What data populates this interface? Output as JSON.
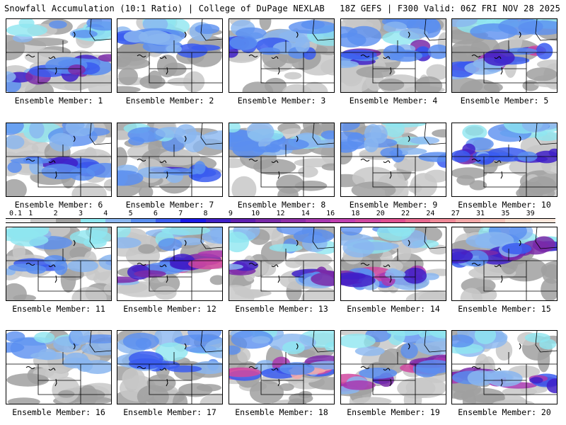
{
  "header": {
    "title_left": "Snowfall Accumulation (10:1 Ratio) | College of DuPage NEXLAB",
    "title_right": "18Z GEFS | F300 Valid: 06Z FRI NOV 28 2025"
  },
  "colorbar": {
    "labels": [
      "0.1",
      "1",
      "2",
      "3",
      "4",
      "5",
      "6",
      "7",
      "8",
      "9",
      "10",
      "12",
      "14",
      "16",
      "18",
      "20",
      "22",
      "24",
      "27",
      "31",
      "35",
      "39"
    ],
    "colors": [
      "#f4f4f4",
      "#c8c8c8",
      "#a0a0a0",
      "#8ee6f0",
      "#8ab6f0",
      "#5a8ef0",
      "#3a5cf0",
      "#1a1ae8",
      "#4020c8",
      "#6020b0",
      "#7a2aa8",
      "#9030a8",
      "#a838b0",
      "#c040b0",
      "#d048a0",
      "#e05090",
      "#e86a90",
      "#f08a98",
      "#f4a8a8",
      "#f8c4b8",
      "#fadccc",
      "#fce8dc"
    ]
  },
  "members": [
    {
      "label": "Ensemble Member: 1",
      "intensity": 0.75
    },
    {
      "label": "Ensemble Member: 2",
      "intensity": 0.35
    },
    {
      "label": "Ensemble Member: 3",
      "intensity": 0.45
    },
    {
      "label": "Ensemble Member: 4",
      "intensity": 0.55
    },
    {
      "label": "Ensemble Member: 5",
      "intensity": 0.8
    },
    {
      "label": "Ensemble Member: 6",
      "intensity": 0.55
    },
    {
      "label": "Ensemble Member: 7",
      "intensity": 0.45
    },
    {
      "label": "Ensemble Member: 8",
      "intensity": 0.2
    },
    {
      "label": "Ensemble Member: 9",
      "intensity": 0.3
    },
    {
      "label": "Ensemble Member: 10",
      "intensity": 0.55
    },
    {
      "label": "Ensemble Member: 11",
      "intensity": 0.3
    },
    {
      "label": "Ensemble Member: 12",
      "intensity": 0.95
    },
    {
      "label": "Ensemble Member: 13",
      "intensity": 0.75
    },
    {
      "label": "Ensemble Member: 14",
      "intensity": 0.9
    },
    {
      "label": "Ensemble Member: 15",
      "intensity": 0.7
    },
    {
      "label": "Ensemble Member: 16",
      "intensity": 0.15
    },
    {
      "label": "Ensemble Member: 17",
      "intensity": 0.35
    },
    {
      "label": "Ensemble Member: 18",
      "intensity": 1.0
    },
    {
      "label": "Ensemble Member: 19",
      "intensity": 0.85
    },
    {
      "label": "Ensemble Member: 20",
      "intensity": 0.7
    }
  ]
}
